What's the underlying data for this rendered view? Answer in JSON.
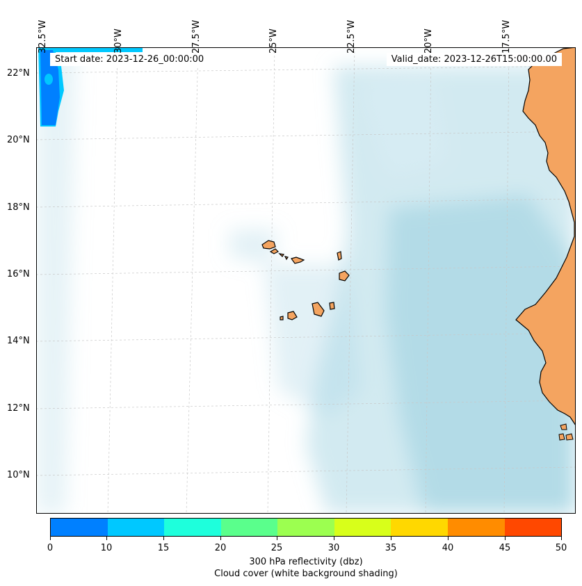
{
  "map": {
    "start_date": "Start date: 2023-12-26_00:00:00",
    "valid_date": "Valid_date: 2023-12-26T15:00:00.00",
    "lon_labels": [
      "32.5°W",
      "30°W",
      "27.5°W",
      "25°W",
      "22.5°W",
      "20°W",
      "17.5°W"
    ],
    "lat_labels": [
      "22°N",
      "20°N",
      "18°N",
      "16°N",
      "14°N",
      "12°N",
      "10°N"
    ],
    "region": "Cape Verde islands and West African coast",
    "colors": {
      "cloud": "#add8e6",
      "land": "#f4a460",
      "coast": "#000000"
    }
  },
  "colorbar": {
    "ticks": [
      "0",
      "10",
      "15",
      "20",
      "25",
      "30",
      "35",
      "40",
      "45",
      "50"
    ],
    "colors": [
      "#0080ff",
      "#00c8ff",
      "#1effdc",
      "#5aff8c",
      "#9cff50",
      "#d8ff1a",
      "#ffd800",
      "#ff8c00",
      "#ff4800"
    ],
    "label": "300 hPa reflectivity (dbz)",
    "sublabel": "Cloud cover (white background shading)"
  }
}
